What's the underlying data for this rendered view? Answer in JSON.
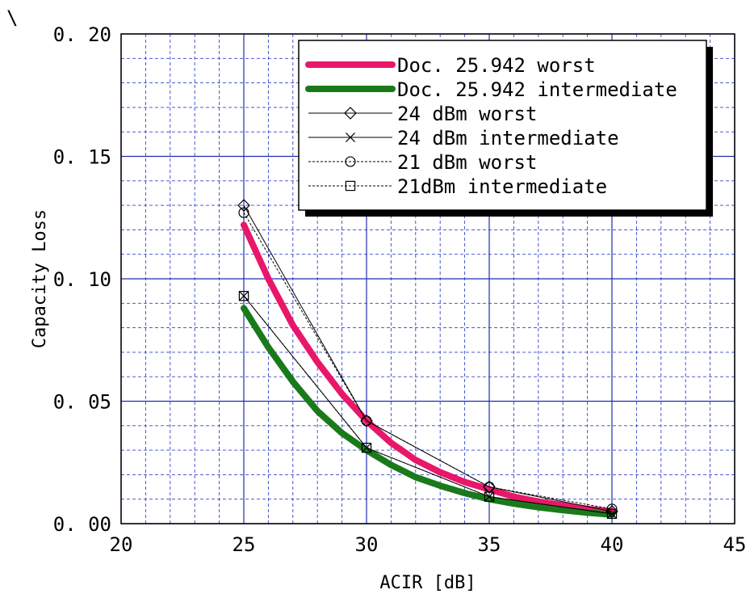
{
  "corner_mark": "\\",
  "chart_data": {
    "type": "line",
    "title": "",
    "xlabel": "ACIR [dB]",
    "ylabel": "Capacity Loss",
    "xlim": [
      20,
      45
    ],
    "ylim": [
      0.0,
      0.2
    ],
    "x_ticks": [
      20,
      25,
      30,
      35,
      40,
      45
    ],
    "x_tick_labels": [
      "20",
      "25",
      "30",
      "35",
      "40",
      "45"
    ],
    "y_ticks": [
      0.0,
      0.05,
      0.1,
      0.15,
      0.2
    ],
    "y_tick_labels": [
      "0. 00",
      "0. 05",
      "0. 10",
      "0. 15",
      "0. 20"
    ],
    "grid": true,
    "grid_minor_x": 1,
    "grid_minor_y": 0.01,
    "legend_position": "top-right",
    "series": [
      {
        "name": "Doc.  25.942 worst",
        "style": "thick",
        "color": "#e8176a",
        "x": [
          25,
          26,
          27,
          28,
          29,
          30,
          31,
          32,
          33,
          34,
          35,
          36,
          37,
          38,
          39,
          40
        ],
        "y": [
          0.122,
          0.1,
          0.081,
          0.066,
          0.053,
          0.042,
          0.033,
          0.026,
          0.021,
          0.017,
          0.014,
          0.011,
          0.009,
          0.0075,
          0.006,
          0.005
        ]
      },
      {
        "name": "Doc.  25.942 intermediate",
        "style": "thick",
        "color": "#1a7a1a",
        "x": [
          25,
          26,
          27,
          28,
          29,
          30,
          31,
          32,
          33,
          34,
          35,
          36,
          37,
          38,
          39,
          40
        ],
        "y": [
          0.088,
          0.072,
          0.058,
          0.046,
          0.037,
          0.03,
          0.024,
          0.019,
          0.0155,
          0.0125,
          0.01,
          0.0082,
          0.0067,
          0.0055,
          0.0045,
          0.0037
        ]
      },
      {
        "name": "24 dBm worst",
        "style": "solid",
        "marker": "diamond",
        "color": "#000000",
        "x": [
          25,
          30,
          35,
          40
        ],
        "y": [
          0.13,
          0.042,
          0.015,
          0.005
        ]
      },
      {
        "name": "24 dBm intermediate",
        "style": "solid",
        "marker": "x",
        "color": "#000000",
        "x": [
          25,
          30,
          35,
          40
        ],
        "y": [
          0.093,
          0.031,
          0.011,
          0.004
        ]
      },
      {
        "name": "21 dBm worst",
        "style": "dashed",
        "marker": "circle",
        "color": "#000000",
        "x": [
          25,
          30,
          35,
          40
        ],
        "y": [
          0.127,
          0.042,
          0.015,
          0.006
        ]
      },
      {
        "name": "21dBm intermediate",
        "style": "dashed",
        "marker": "square",
        "color": "#000000",
        "x": [
          25,
          30,
          35,
          40
        ],
        "y": [
          0.093,
          0.031,
          0.011,
          0.004
        ]
      }
    ]
  }
}
